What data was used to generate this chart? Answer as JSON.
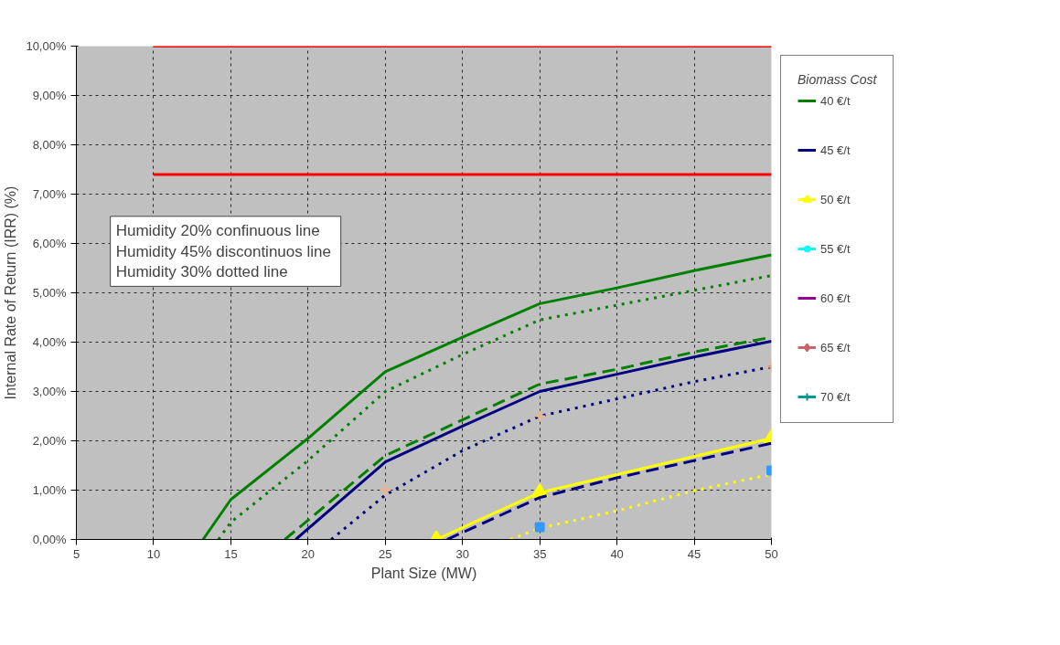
{
  "chart_data": {
    "type": "line",
    "xlabel": "Plant Size (MW)",
    "ylabel": "Internal Rate of Return (IRR) (%)",
    "legend_title": "Biomass Cost",
    "legend": "right",
    "grid": true,
    "xlim": [
      5,
      50
    ],
    "xticks": [
      5,
      10,
      15,
      20,
      25,
      30,
      35,
      40,
      45,
      50
    ],
    "ylim": [
      0,
      10
    ],
    "yticks": [
      {
        "value": 0,
        "label": "0,00%"
      },
      {
        "value": 1,
        "label": "1,00%"
      },
      {
        "value": 2,
        "label": "2,00%"
      },
      {
        "value": 3,
        "label": "3,00%"
      },
      {
        "value": 4,
        "label": "4,00%"
      },
      {
        "value": 5,
        "label": "5,00%"
      },
      {
        "value": 6,
        "label": "6,00%"
      },
      {
        "value": 7,
        "label": "7,00%"
      },
      {
        "value": 8,
        "label": "8,00%"
      },
      {
        "value": 9,
        "label": "9,00%"
      },
      {
        "value": 10,
        "label": "10,00%"
      }
    ],
    "annotations": [
      "Humidity  20% confinuous line",
      "Humidity  45% discontinuos line",
      "Humidity  30% dotted line"
    ],
    "series": [
      {
        "name": "40 €/t",
        "color": "#008000",
        "line_style": "solid",
        "marker": "none",
        "x": [
          13.2,
          15,
          20,
          25,
          30,
          35,
          40,
          45,
          50
        ],
        "values": [
          0,
          0.81,
          2.05,
          3.4,
          4.1,
          4.78,
          5.1,
          5.45,
          5.77
        ]
      },
      {
        "name": "45 €/t",
        "color": "#000080",
        "line_style": "solid",
        "marker": "none",
        "x": [
          19.2,
          25,
          30,
          35,
          40,
          45,
          50
        ],
        "values": [
          0,
          1.57,
          2.3,
          3.0,
          3.35,
          3.7,
          4.02
        ]
      },
      {
        "name": "50 €/t",
        "color": "#ffff00",
        "line_style": "solid",
        "marker": "triangle",
        "x": [
          28.3,
          35,
          50
        ],
        "values": [
          0,
          0.95,
          2.05
        ]
      },
      {
        "name": "55 €/t",
        "color": "#00ffff",
        "line_style": "solid",
        "marker": "star"
      },
      {
        "name": "60 €/t",
        "color": "#990099",
        "line_style": "solid",
        "marker": "none"
      },
      {
        "name": "65 €/t",
        "color": "#cc6666",
        "line_style": "solid",
        "marker": "diamond"
      },
      {
        "name": "70 €/t",
        "color": "#009999",
        "line_style": "solid",
        "marker": "cross"
      },
      {
        "color": "#008000",
        "line_style": "dotted",
        "marker": "none",
        "x": [
          14.2,
          15,
          20,
          25,
          30,
          35,
          40,
          45,
          50
        ],
        "values": [
          0,
          0.35,
          1.6,
          3.0,
          3.75,
          4.45,
          4.75,
          5.05,
          5.35
        ]
      },
      {
        "color": "#008000",
        "line_style": "dashed",
        "marker": "none",
        "x": [
          18.5,
          25,
          35,
          40,
          45,
          50
        ],
        "values": [
          0,
          1.7,
          3.15,
          3.45,
          3.8,
          4.1
        ]
      },
      {
        "color": "#000080",
        "line_style": "dotted",
        "marker": "none",
        "x": [
          21.5,
          25,
          30,
          35,
          40,
          45,
          50
        ],
        "values": [
          0,
          0.9,
          1.8,
          2.5,
          2.85,
          3.2,
          3.5
        ]
      },
      {
        "color": "#000080",
        "line_style": "dashed",
        "marker": "none",
        "x": [
          29,
          35,
          40,
          45,
          50
        ],
        "values": [
          0,
          0.85,
          1.25,
          1.6,
          1.95
        ]
      },
      {
        "color": "#ffff00",
        "line_style": "dotted",
        "marker": "none",
        "x": [
          33.1,
          35,
          40,
          45,
          50
        ],
        "values": [
          0,
          0.23,
          0.58,
          0.99,
          1.32
        ]
      },
      {
        "type": "scatter",
        "color": "#f4b183",
        "marker": "cross",
        "x": [
          25,
          35,
          50
        ],
        "values": [
          1.0,
          2.5,
          3.5
        ]
      },
      {
        "type": "scatter",
        "color": "#3399ff",
        "marker": "square",
        "x": [
          35,
          50
        ],
        "values": [
          0.25,
          1.4
        ]
      },
      {
        "color": "#ff0000",
        "line_style": "solid",
        "marker": "none",
        "x": [
          10,
          50
        ],
        "values": [
          10,
          10
        ]
      },
      {
        "color": "#ff0000",
        "line_style": "solid",
        "marker": "none",
        "x": [
          10,
          50
        ],
        "values": [
          7.4,
          7.4
        ]
      }
    ]
  }
}
